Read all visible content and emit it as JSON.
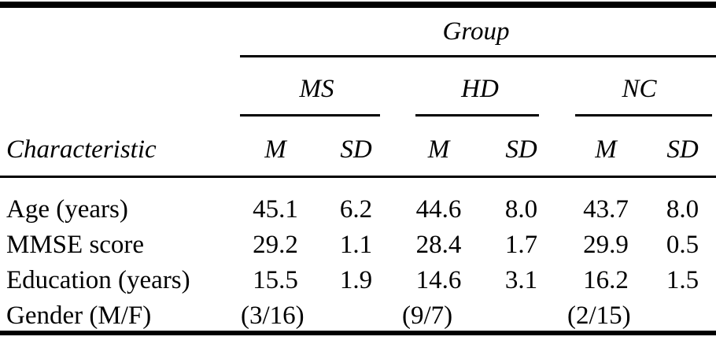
{
  "table": {
    "group_label": "Group",
    "stub_header": "Characteristic",
    "groups": [
      {
        "label": "MS"
      },
      {
        "label": "HD"
      },
      {
        "label": "NC"
      }
    ],
    "measure_headers": [
      "M",
      "SD"
    ],
    "rows": [
      {
        "label": "Age (years)",
        "values": [
          "45.1",
          "6.2",
          "44.6",
          "8.0",
          "43.7",
          "8.0"
        ]
      },
      {
        "label": "MMSE score",
        "values": [
          "29.2",
          "1.1",
          "28.4",
          "1.7",
          "29.9",
          "0.5"
        ]
      },
      {
        "label": "Education (years)",
        "values": [
          "15.5",
          "1.9",
          "14.6",
          "3.1",
          "16.2",
          "1.5"
        ]
      },
      {
        "label": "Gender (M/F)",
        "values": [
          "(3/16)",
          "(9/7)",
          "(2/15)"
        ]
      }
    ],
    "colors": {
      "text": "#000000",
      "background": "#ffffff",
      "rule": "#000000"
    }
  }
}
